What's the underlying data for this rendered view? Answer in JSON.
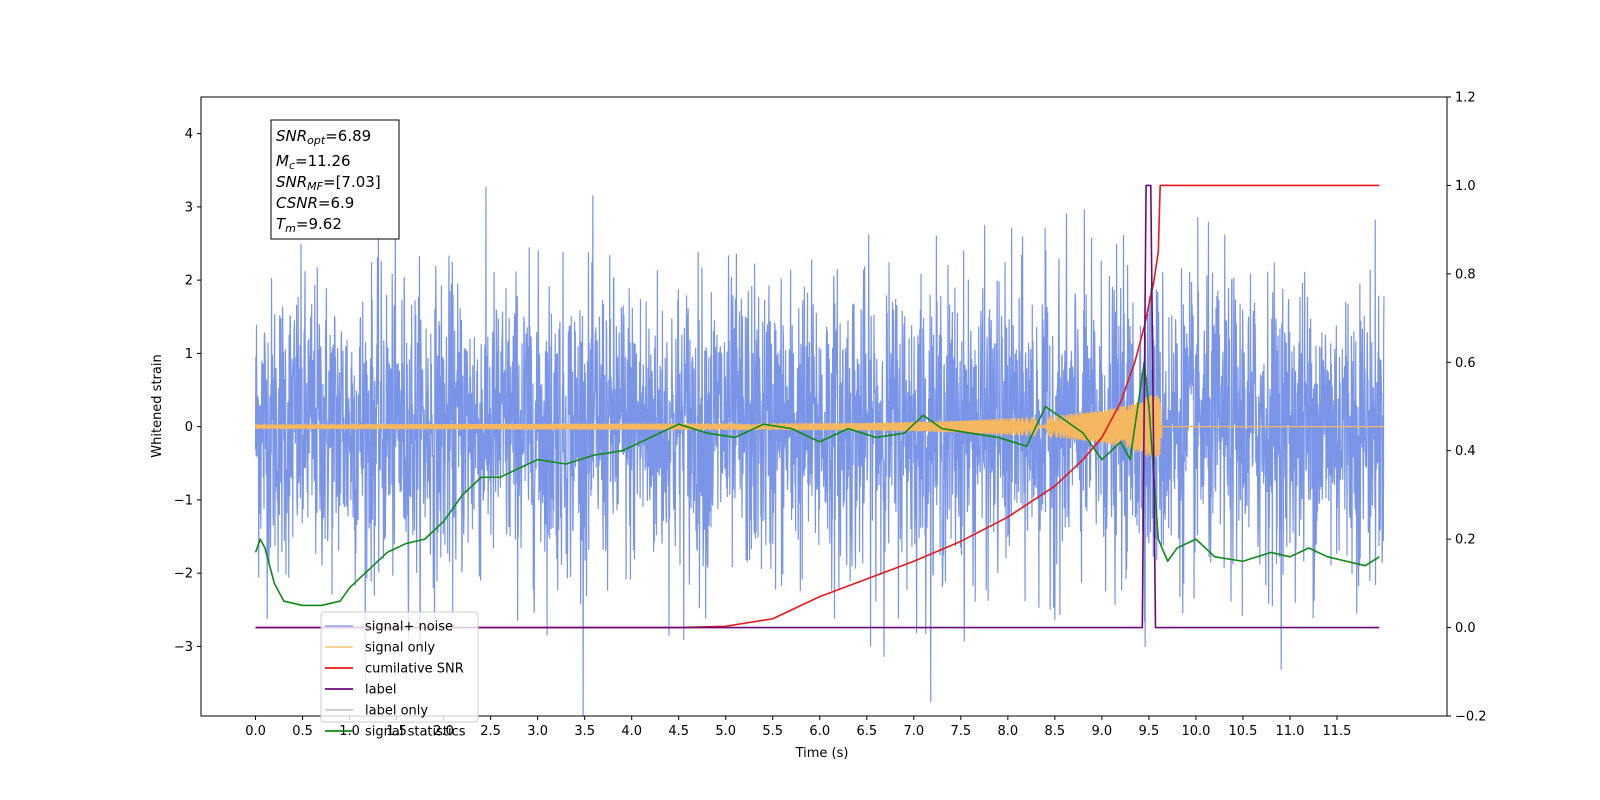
{
  "chart_data": {
    "type": "line",
    "xlabel": "Time (s)",
    "ylabel_left": "Whitened strain",
    "xlim": [
      -0.58,
      12.67
    ],
    "ylim_left": [
      -3.95,
      4.5
    ],
    "ylim_right": [
      -0.2,
      1.2
    ],
    "x_ticks": [
      "0.0",
      "0.5",
      "1.0",
      "1.5",
      "2.0",
      "2.5",
      "3.0",
      "3.5",
      "4.0",
      "4.5",
      "5.0",
      "5.5",
      "6.0",
      "6.5",
      "7.0",
      "7.5",
      "8.0",
      "8.5",
      "9.0",
      "9.5",
      "10.0",
      "10.5",
      "11.0",
      "11.5"
    ],
    "y_ticks_left": [
      "4",
      "3",
      "2",
      "1",
      "0",
      "−1",
      "−2",
      "−3"
    ],
    "y_ticks_right": [
      "1.2",
      "1.0",
      "0.8",
      "0.6",
      "0.4",
      "0.2",
      "0.0",
      "−0.2"
    ],
    "annotation": {
      "snr_opt": {
        "base": "SNR",
        "sub": "opt",
        "value": "=6.89"
      },
      "mc": {
        "base": "M",
        "sub": "c",
        "value": "=11.26"
      },
      "snr_mf": {
        "base": "SNR",
        "sub": "MF",
        "value": "=[7.03]"
      },
      "csnr": {
        "base": "CSNR",
        "sub": "",
        "value": "=6.9"
      },
      "tm": {
        "base": "T",
        "sub": "m",
        "value": "=9.62"
      }
    },
    "series": [
      {
        "name": "signal+ noise",
        "color": "#7a95e8",
        "axis": "left",
        "kind": "noise",
        "duration": 12.0,
        "envelope": 1.0
      },
      {
        "name": "signal only",
        "color": "#f5b760",
        "axis": "left",
        "kind": "chirp",
        "merge_time": 9.62,
        "amplitude_points": [
          [
            0,
            0.03
          ],
          [
            6.5,
            0.05
          ],
          [
            7.5,
            0.08
          ],
          [
            8.5,
            0.15
          ],
          [
            9.0,
            0.22
          ],
          [
            9.3,
            0.3
          ],
          [
            9.55,
            0.45
          ],
          [
            9.62,
            0.4
          ],
          [
            9.64,
            0
          ]
        ]
      },
      {
        "name": "cumilative SNR",
        "color": "#e8191b",
        "axis": "right",
        "points": [
          [
            0,
            0
          ],
          [
            4.5,
            0
          ],
          [
            5,
            0.003
          ],
          [
            5.5,
            0.02
          ],
          [
            6,
            0.07
          ],
          [
            6.5,
            0.11
          ],
          [
            7,
            0.15
          ],
          [
            7.5,
            0.195
          ],
          [
            8,
            0.25
          ],
          [
            8.5,
            0.32
          ],
          [
            8.8,
            0.38
          ],
          [
            9.0,
            0.43
          ],
          [
            9.2,
            0.51
          ],
          [
            9.35,
            0.6
          ],
          [
            9.45,
            0.68
          ],
          [
            9.55,
            0.78
          ],
          [
            9.6,
            0.85
          ],
          [
            9.62,
            1.0
          ],
          [
            11.95,
            1.0
          ]
        ]
      },
      {
        "name": "label",
        "color": "#6a0a78",
        "axis": "right",
        "points": [
          [
            0,
            0
          ],
          [
            9.43,
            0
          ],
          [
            9.47,
            1
          ],
          [
            9.52,
            1
          ],
          [
            9.57,
            0
          ],
          [
            11.95,
            0
          ]
        ]
      },
      {
        "name": "label only",
        "color": "#c9c9c9",
        "axis": "right",
        "hidden": true,
        "points": []
      },
      {
        "name": "signal statistics",
        "color": "#118a18",
        "axis": "right",
        "points": [
          [
            0,
            0.17
          ],
          [
            0.05,
            0.2
          ],
          [
            0.1,
            0.18
          ],
          [
            0.2,
            0.1
          ],
          [
            0.3,
            0.06
          ],
          [
            0.5,
            0.05
          ],
          [
            0.7,
            0.05
          ],
          [
            0.9,
            0.06
          ],
          [
            1.0,
            0.09
          ],
          [
            1.2,
            0.13
          ],
          [
            1.4,
            0.17
          ],
          [
            1.6,
            0.19
          ],
          [
            1.8,
            0.2
          ],
          [
            2.0,
            0.24
          ],
          [
            2.2,
            0.3
          ],
          [
            2.4,
            0.34
          ],
          [
            2.6,
            0.34
          ],
          [
            2.8,
            0.36
          ],
          [
            3.0,
            0.38
          ],
          [
            3.3,
            0.37
          ],
          [
            3.6,
            0.39
          ],
          [
            3.9,
            0.4
          ],
          [
            4.2,
            0.43
          ],
          [
            4.5,
            0.46
          ],
          [
            4.8,
            0.44
          ],
          [
            5.1,
            0.43
          ],
          [
            5.4,
            0.46
          ],
          [
            5.7,
            0.45
          ],
          [
            6.0,
            0.42
          ],
          [
            6.3,
            0.45
          ],
          [
            6.6,
            0.43
          ],
          [
            6.9,
            0.44
          ],
          [
            7.1,
            0.48
          ],
          [
            7.3,
            0.45
          ],
          [
            7.6,
            0.44
          ],
          [
            7.9,
            0.43
          ],
          [
            8.2,
            0.41
          ],
          [
            8.4,
            0.5
          ],
          [
            8.6,
            0.47
          ],
          [
            8.8,
            0.44
          ],
          [
            9.0,
            0.38
          ],
          [
            9.2,
            0.42
          ],
          [
            9.3,
            0.38
          ],
          [
            9.45,
            0.6
          ],
          [
            9.5,
            0.5
          ],
          [
            9.6,
            0.2
          ],
          [
            9.7,
            0.15
          ],
          [
            9.8,
            0.18
          ],
          [
            10.0,
            0.2
          ],
          [
            10.2,
            0.16
          ],
          [
            10.5,
            0.15
          ],
          [
            10.8,
            0.17
          ],
          [
            11.0,
            0.16
          ],
          [
            11.2,
            0.18
          ],
          [
            11.4,
            0.16
          ],
          [
            11.6,
            0.15
          ],
          [
            11.8,
            0.14
          ],
          [
            11.95,
            0.16
          ]
        ]
      }
    ],
    "legend": {
      "placement": "lower-left"
    }
  }
}
